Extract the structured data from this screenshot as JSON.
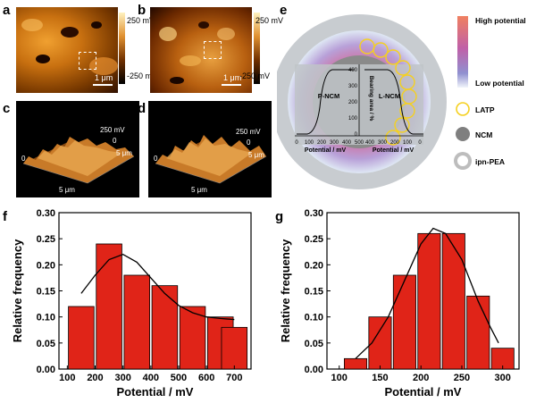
{
  "panels": {
    "a": {
      "letter": "a",
      "cbar_top": "250 mV",
      "cbar_bottom": "-250 mV",
      "scale": "1 μm"
    },
    "b": {
      "letter": "b",
      "cbar_top": "250 mV",
      "cbar_bottom": "-250 mV",
      "scale": "1 μm"
    },
    "c": {
      "letter": "c",
      "z_top": "250 mV",
      "z_zero": "0",
      "y_label": "5 μm",
      "x_zero": "0",
      "x_label": "5 μm"
    },
    "d": {
      "letter": "d",
      "z_top": "250 mV",
      "z_zero": "0",
      "y_label": "5 μm",
      "x_zero": "0",
      "x_label": "5 μm"
    },
    "e": {
      "letter": "e",
      "left_label": "P-NCM",
      "right_label": "L-NCM",
      "ylabel": "Bearing area / %",
      "xlabel_left": "Potential / mV",
      "xlabel_right": "Potential / mV",
      "left_ticks": [
        "0",
        "100",
        "200",
        "300",
        "400",
        "500"
      ],
      "right_ticks": [
        "400",
        "300",
        "200",
        "100",
        "0"
      ],
      "y_ticks": [
        "400",
        "300",
        "200",
        "100",
        "0"
      ],
      "legend": {
        "high": "High potential",
        "low": "Low potential",
        "latp": "LATP",
        "ncm": "NCM",
        "ipn": "ipn-PEA"
      },
      "colors": {
        "latp": "#f5d020",
        "ncm": "#7f7f7f",
        "ipn": "#bdbdbd",
        "high": "#f08060",
        "mid": "#b070c0",
        "low": "#c8d8ee"
      }
    },
    "f": {
      "letter": "f"
    },
    "g": {
      "letter": "g"
    }
  },
  "chart_data": [
    {
      "panel": "f",
      "type": "bar",
      "x": [
        150,
        250,
        350,
        450,
        550,
        650,
        700
      ],
      "values": [
        0.12,
        0.24,
        0.18,
        0.16,
        0.12,
        0.1,
        0.08
      ],
      "fit_curve": [
        [
          150,
          0.145
        ],
        [
          200,
          0.18
        ],
        [
          250,
          0.21
        ],
        [
          300,
          0.22
        ],
        [
          350,
          0.205
        ],
        [
          400,
          0.175
        ],
        [
          450,
          0.145
        ],
        [
          500,
          0.122
        ],
        [
          550,
          0.108
        ],
        [
          600,
          0.1
        ],
        [
          650,
          0.097
        ],
        [
          700,
          0.095
        ]
      ],
      "xlabel": "Potential / mV",
      "ylabel": "Relative frequency",
      "xticks": [
        100,
        200,
        300,
        400,
        500,
        600,
        700
      ],
      "yticks": [
        0.0,
        0.05,
        0.1,
        0.15,
        0.2,
        0.25,
        0.3
      ],
      "xlim": [
        70,
        760
      ],
      "ylim": [
        0,
        0.3
      ],
      "bar_color": "#e02418"
    },
    {
      "panel": "g",
      "type": "bar",
      "x": [
        120,
        150,
        180,
        210,
        240,
        270,
        300
      ],
      "values": [
        0.02,
        0.1,
        0.18,
        0.26,
        0.26,
        0.14,
        0.04
      ],
      "fit_curve": [
        [
          120,
          0.02
        ],
        [
          140,
          0.05
        ],
        [
          160,
          0.1
        ],
        [
          180,
          0.17
        ],
        [
          200,
          0.24
        ],
        [
          215,
          0.27
        ],
        [
          230,
          0.26
        ],
        [
          250,
          0.21
        ],
        [
          270,
          0.13
        ],
        [
          285,
          0.08
        ],
        [
          295,
          0.05
        ]
      ],
      "xlabel": "Potential / mV",
      "ylabel": "Relative frequency",
      "xticks": [
        100,
        150,
        200,
        250,
        300
      ],
      "yticks": [
        0.0,
        0.05,
        0.1,
        0.15,
        0.2,
        0.25,
        0.3
      ],
      "xlim": [
        85,
        320
      ],
      "ylim": [
        0,
        0.3
      ],
      "bar_color": "#e02418"
    }
  ]
}
